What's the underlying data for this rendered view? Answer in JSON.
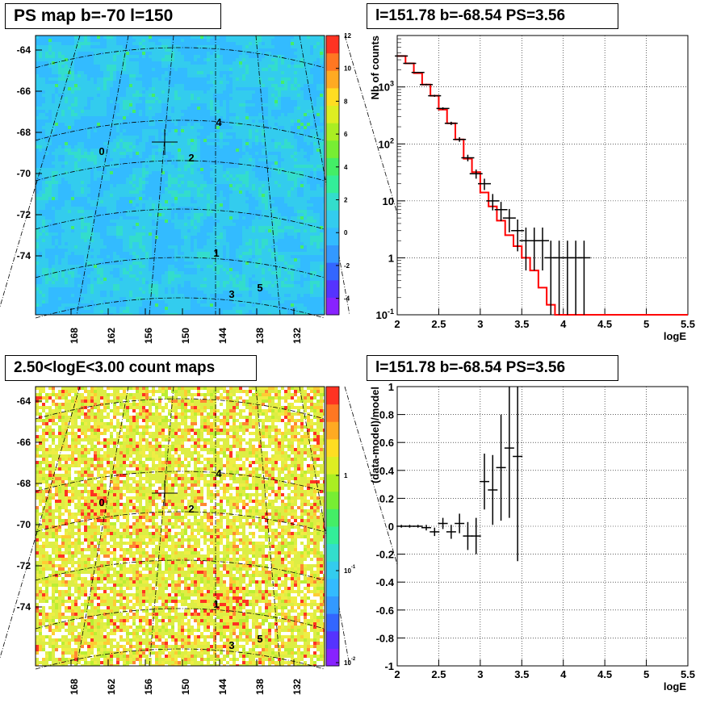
{
  "panels": {
    "ps_map_title": "PS map b=-70 l=150",
    "spectrum_title": "l=151.78 b=-68.54 PS=3.56",
    "count_map_title": "2.50<logE<3.00 count maps",
    "residual_title": "l=151.78 b=-68.54 PS=3.56"
  },
  "chart_data": [
    {
      "type": "heatmap",
      "title": "PS map b=-70 l=150",
      "x_tick_labels": [
        "168",
        "162",
        "156",
        "150",
        "144",
        "138",
        "132"
      ],
      "y_tick_labels": [
        "-64",
        "-66",
        "-68",
        "-70",
        "-72",
        "-74"
      ],
      "colorbar": {
        "scale": "linear",
        "range": [
          -5,
          12
        ],
        "tick_labels": [
          "12",
          "10",
          "8",
          "6",
          "4",
          "2",
          "0",
          "-2",
          "-4"
        ]
      },
      "source_labels": [
        "0",
        "1",
        "2",
        "3",
        "4",
        "5"
      ],
      "marker": "cross",
      "base_color": "#33ccee"
    },
    {
      "type": "line",
      "title": "l=151.78 b=-68.54 PS=3.56",
      "xlabel": "logE",
      "ylabel": "Nb of counts",
      "xlim": [
        2,
        5.5
      ],
      "ylim": [
        0.1,
        8000
      ],
      "y_scale": "log",
      "x_tick_labels": [
        "2",
        "2.5",
        "3",
        "3.5",
        "4",
        "4.5",
        "5",
        "5.5"
      ],
      "y_tick_labels": [
        "10^-1",
        "1",
        "10",
        "10^2",
        "10^3"
      ],
      "grid": true,
      "series": [
        {
          "kind": "step",
          "color": "#ff0000",
          "bin_edges": [
            2.0,
            2.1,
            2.2,
            2.3,
            2.4,
            2.5,
            2.6,
            2.7,
            2.8,
            2.9,
            3.0,
            3.1,
            3.2,
            3.3,
            3.4,
            3.5,
            3.6,
            3.7,
            3.8,
            3.9,
            4.0,
            5.5
          ],
          "values": [
            3500,
            2600,
            1750,
            1100,
            700,
            400,
            230,
            120,
            55,
            32,
            14,
            8,
            4.5,
            2.5,
            1.6,
            1.0,
            0.6,
            0.3,
            0.15,
            0.1,
            0.1
          ]
        },
        {
          "kind": "points",
          "color": "#000000",
          "x": [
            2.05,
            2.15,
            2.25,
            2.35,
            2.45,
            2.55,
            2.65,
            2.75,
            2.85,
            2.95,
            3.05,
            3.15,
            3.25,
            3.35,
            3.45,
            3.55,
            3.65,
            3.75,
            3.85,
            3.95,
            4.05,
            4.15,
            4.25
          ],
          "y": [
            3500,
            2600,
            1800,
            1100,
            700,
            420,
            230,
            120,
            57,
            30,
            20,
            10,
            7,
            5,
            3,
            2,
            2,
            2,
            1,
            1,
            1,
            1,
            1
          ],
          "y_err_low": [
            60,
            50,
            45,
            35,
            28,
            20,
            15,
            11,
            7.5,
            5.5,
            4.5,
            3.2,
            2.6,
            2.2,
            1.7,
            1.4,
            1.4,
            1.4,
            0.92,
            0.92,
            0.92,
            0.92,
            0.92
          ],
          "y_err_high": [
            60,
            50,
            45,
            35,
            28,
            20,
            15,
            11,
            7.5,
            5.5,
            4.5,
            3.2,
            2.6,
            2.2,
            1.7,
            1.4,
            1.4,
            1.4,
            1.0,
            1.0,
            1.0,
            1.0,
            1.0
          ]
        }
      ]
    },
    {
      "type": "heatmap",
      "title": "2.50<logE<3.00 count maps",
      "x_tick_labels": [
        "168",
        "162",
        "156",
        "150",
        "144",
        "138",
        "132"
      ],
      "y_tick_labels": [
        "-64",
        "-66",
        "-68",
        "-70",
        "-72",
        "-74"
      ],
      "colorbar": {
        "scale": "log",
        "tick_labels": [
          "1",
          "10^-1",
          "10^-2"
        ]
      },
      "source_labels": [
        "0",
        "1",
        "2",
        "3",
        "4",
        "5"
      ],
      "marker": "cross"
    },
    {
      "type": "scatter",
      "title": "l=151.78 b=-68.54 PS=3.56",
      "xlabel": "logE",
      "ylabel": "(data-model)/model",
      "xlim": [
        2,
        5.5
      ],
      "ylim": [
        -1,
        1
      ],
      "x_tick_labels": [
        "2",
        "2.5",
        "3",
        "3.5",
        "4",
        "4.5",
        "5",
        "5.5"
      ],
      "y_tick_labels": [
        "-1",
        "-0.8",
        "-0.6",
        "-0.4",
        "-0.2",
        "0",
        "0.2",
        "0.4",
        "0.6",
        "0.8",
        "1"
      ],
      "grid": true,
      "series": [
        {
          "kind": "points",
          "color": "#000000",
          "x": [
            2.05,
            2.15,
            2.25,
            2.35,
            2.45,
            2.55,
            2.65,
            2.75,
            2.85,
            2.95,
            3.05,
            3.15,
            3.25,
            3.35,
            3.45
          ],
          "y": [
            0.0,
            0.0,
            0.0,
            -0.01,
            -0.04,
            0.02,
            -0.04,
            0.02,
            -0.07,
            -0.07,
            0.32,
            0.26,
            0.42,
            0.56,
            0.5
          ],
          "y_err": [
            0.01,
            0.01,
            0.01,
            0.02,
            0.03,
            0.04,
            0.05,
            0.07,
            0.1,
            0.13,
            0.2,
            0.25,
            0.38,
            0.5,
            0.75
          ]
        }
      ]
    }
  ]
}
